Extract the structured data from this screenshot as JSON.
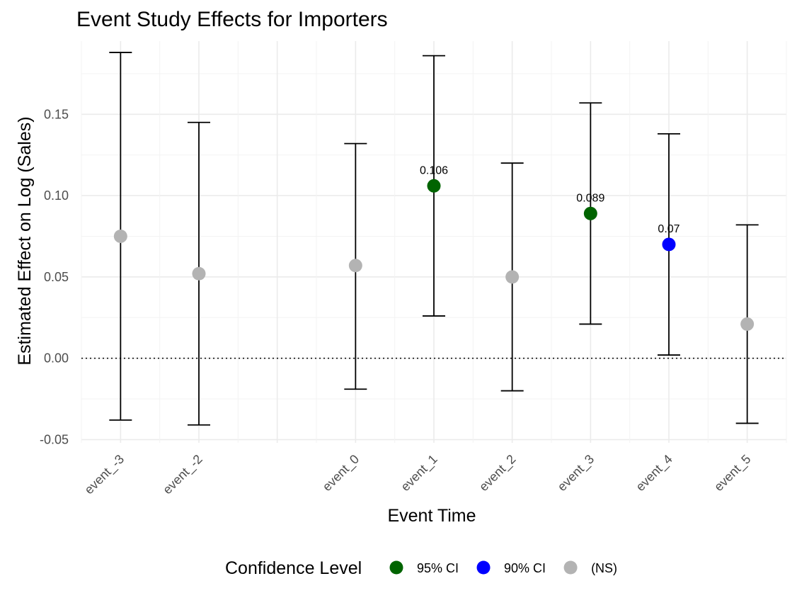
{
  "chart_data": {
    "type": "scatter",
    "title": "Event Study Effects for Importers",
    "xlabel": "Event Time",
    "ylabel": "Estimated Effect on Log (Sales)",
    "categories": [
      "event_-3",
      "event_-2",
      "event_0",
      "event_1",
      "event_2",
      "event_3",
      "event_4",
      "event_5"
    ],
    "x_positions": [
      -3,
      -2,
      0,
      1,
      2,
      3,
      4,
      5
    ],
    "points": [
      {
        "label": "event_-3",
        "x": -3,
        "estimate": 0.075,
        "ci_low": -0.038,
        "ci_high": 0.188,
        "level": "(NS)",
        "value_label": ""
      },
      {
        "label": "event_-2",
        "x": -2,
        "estimate": 0.052,
        "ci_low": -0.041,
        "ci_high": 0.145,
        "level": "(NS)",
        "value_label": ""
      },
      {
        "label": "event_0",
        "x": 0,
        "estimate": 0.057,
        "ci_low": -0.019,
        "ci_high": 0.132,
        "level": "(NS)",
        "value_label": ""
      },
      {
        "label": "event_1",
        "x": 1,
        "estimate": 0.106,
        "ci_low": 0.026,
        "ci_high": 0.186,
        "level": "95% CI",
        "value_label": "0.106"
      },
      {
        "label": "event_2",
        "x": 2,
        "estimate": 0.05,
        "ci_low": -0.02,
        "ci_high": 0.12,
        "level": "(NS)",
        "value_label": ""
      },
      {
        "label": "event_3",
        "x": 3,
        "estimate": 0.089,
        "ci_low": 0.021,
        "ci_high": 0.157,
        "level": "95% CI",
        "value_label": "0.089"
      },
      {
        "label": "event_4",
        "x": 4,
        "estimate": 0.07,
        "ci_low": 0.002,
        "ci_high": 0.138,
        "level": "90% CI",
        "value_label": "0.07"
      },
      {
        "label": "event_5",
        "x": 5,
        "estimate": 0.021,
        "ci_low": -0.04,
        "ci_high": 0.082,
        "level": "(NS)",
        "value_label": ""
      }
    ],
    "y_ticks": [
      -0.05,
      0.0,
      0.05,
      0.1,
      0.15
    ],
    "y_tick_labels": [
      "-0.05",
      "0.00",
      "0.05",
      "0.10",
      "0.15"
    ],
    "ylim": [
      -0.052,
      0.195
    ],
    "xlim": [
      -3.5,
      5.5
    ],
    "reference_line": {
      "y": 0,
      "style": "dotted"
    },
    "grid": true,
    "legend": {
      "title": "Confidence Level",
      "position": "bottom",
      "entries": [
        {
          "label": "95% CI",
          "color": "#006400"
        },
        {
          "label": "90% CI",
          "color": "#0000ff"
        },
        {
          "label": "(NS)",
          "color": "#b3b3b3"
        }
      ]
    }
  }
}
